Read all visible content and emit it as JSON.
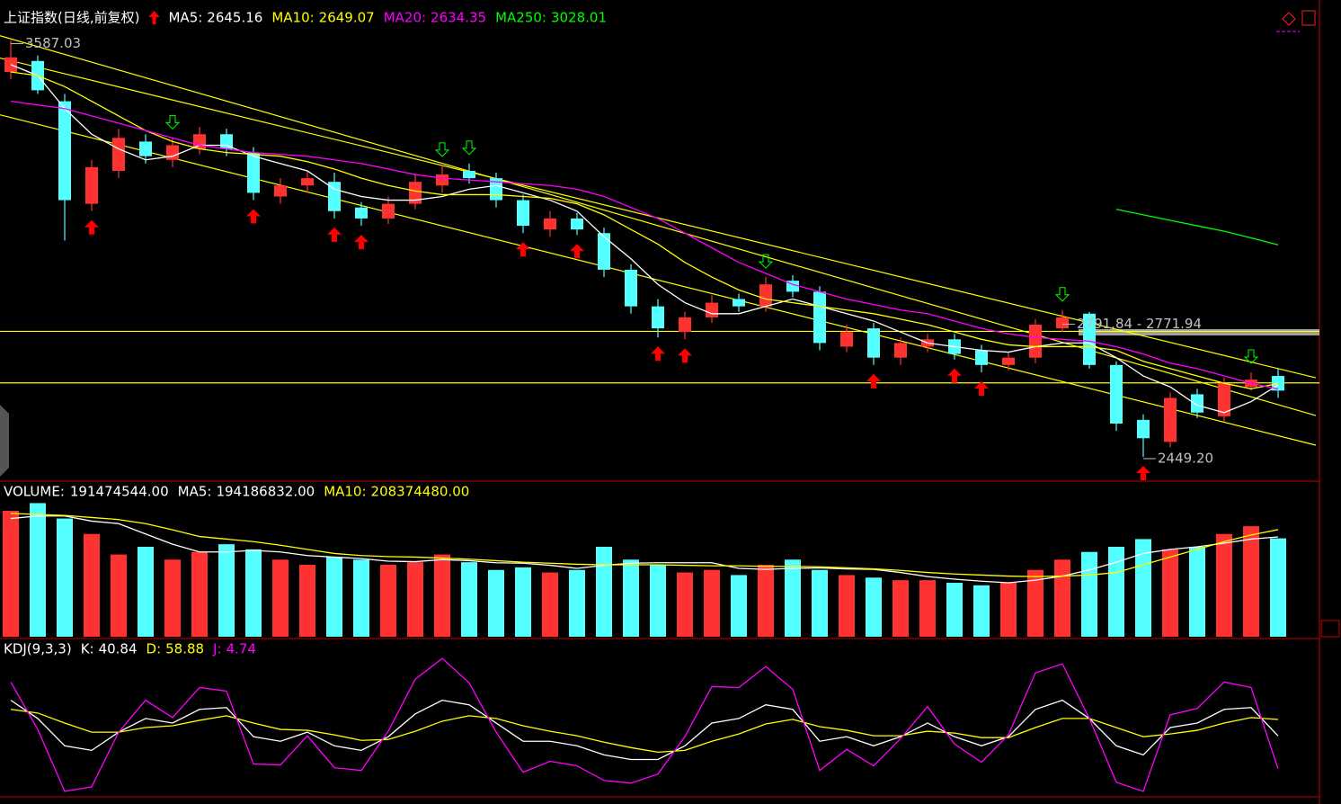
{
  "chart_data": [
    {
      "type": "candlestick",
      "title": "上证指数(日线,前复权)",
      "open": [
        3500,
        3530,
        3420,
        3140,
        3230,
        3310,
        3260,
        3290,
        3330,
        3280,
        3160,
        3190,
        3200,
        3130,
        3100,
        3140,
        3190,
        3230,
        3210,
        3150,
        3070,
        3100,
        3060,
        2960,
        2860,
        2790,
        2830,
        2880,
        2860,
        2930,
        2900,
        2750,
        2800,
        2720,
        2750,
        2770,
        2740,
        2700,
        2720,
        2800,
        2840,
        2700,
        2550,
        2490,
        2620,
        2560,
        2640,
        2670
      ],
      "high": [
        3587.03,
        3545,
        3440,
        3260,
        3345,
        3330,
        3320,
        3350,
        3345,
        3295,
        3210,
        3230,
        3225,
        3145,
        3160,
        3220,
        3245,
        3250,
        3225,
        3165,
        3120,
        3115,
        3075,
        2975,
        2880,
        2845,
        2890,
        2895,
        2940,
        2945,
        2915,
        2810,
        2815,
        2775,
        2785,
        2785,
        2755,
        2735,
        2825,
        2850,
        2845,
        2710,
        2565,
        2625,
        2635,
        2665,
        2680,
        2690
      ],
      "low": [
        3480,
        3440,
        3040,
        3120,
        3210,
        3250,
        3240,
        3275,
        3270,
        3150,
        3140,
        3170,
        3100,
        3080,
        3085,
        3125,
        3170,
        3195,
        3130,
        3060,
        3050,
        3055,
        2940,
        2840,
        2775,
        2770,
        2815,
        2845,
        2845,
        2885,
        2740,
        2735,
        2700,
        2700,
        2735,
        2715,
        2680,
        2685,
        2705,
        2790,
        2690,
        2520,
        2449.2,
        2475,
        2555,
        2545,
        2630,
        2610
      ],
      "close": [
        3540,
        3450,
        3150,
        3240,
        3320,
        3270,
        3300,
        3330,
        3290,
        3170,
        3190,
        3210,
        3120,
        3100,
        3140,
        3200,
        3220,
        3210,
        3150,
        3080,
        3100,
        3070,
        2960,
        2860,
        2800,
        2830,
        2870,
        2860,
        2920,
        2900,
        2760,
        2790,
        2720,
        2760,
        2770,
        2730,
        2700,
        2720,
        2810,
        2830,
        2700,
        2540,
        2500,
        2610,
        2570,
        2650,
        2660,
        2630
      ],
      "up_color": "#ff3232",
      "down_color": "#54ffff",
      "ylim": [
        2400,
        3640
      ],
      "series": [
        {
          "name": "MA5:",
          "color": "#ffffff",
          "values": [
            3520,
            3490,
            3400,
            3330,
            3290,
            3260,
            3270,
            3300,
            3300,
            3270,
            3250,
            3230,
            3180,
            3160,
            3150,
            3150,
            3160,
            3180,
            3190,
            3170,
            3150,
            3120,
            3050,
            2990,
            2920,
            2870,
            2840,
            2840,
            2860,
            2880,
            2860,
            2840,
            2820,
            2790,
            2760,
            2750,
            2740,
            2735,
            2750,
            2760,
            2760,
            2720,
            2670,
            2640,
            2590,
            2570,
            2600,
            2645.16
          ]
        },
        {
          "name": "MA10:",
          "color": "#ffff00",
          "values": [
            3500,
            3490,
            3460,
            3420,
            3380,
            3340,
            3310,
            3290,
            3280,
            3275,
            3270,
            3255,
            3235,
            3210,
            3190,
            3175,
            3165,
            3165,
            3165,
            3160,
            3155,
            3140,
            3110,
            3070,
            3030,
            2980,
            2940,
            2905,
            2880,
            2870,
            2860,
            2850,
            2840,
            2825,
            2810,
            2790,
            2770,
            2755,
            2750,
            2750,
            2750,
            2740,
            2710,
            2690,
            2670,
            2650,
            2635,
            2649.07
          ]
        },
        {
          "name": "MA20:",
          "color": "#ff00ff",
          "values": [
            3420,
            3410,
            3400,
            3380,
            3360,
            3340,
            3320,
            3300,
            3290,
            3280,
            3275,
            3270,
            3260,
            3250,
            3235,
            3220,
            3210,
            3205,
            3200,
            3195,
            3190,
            3180,
            3160,
            3130,
            3100,
            3060,
            3020,
            2980,
            2950,
            2920,
            2900,
            2880,
            2865,
            2850,
            2840,
            2820,
            2800,
            2785,
            2775,
            2770,
            2765,
            2750,
            2730,
            2705,
            2690,
            2670,
            2650,
            2634.35
          ]
        },
        {
          "name": "MA250:",
          "color": "#00ff00",
          "values": [
            null,
            null,
            null,
            null,
            null,
            null,
            null,
            null,
            null,
            null,
            null,
            null,
            null,
            null,
            null,
            null,
            null,
            null,
            null,
            null,
            null,
            null,
            null,
            null,
            null,
            null,
            null,
            null,
            null,
            null,
            null,
            null,
            null,
            null,
            null,
            null,
            null,
            null,
            null,
            null,
            null,
            3125,
            3110,
            3095,
            3080,
            3065,
            3047,
            3028.01
          ]
        }
      ],
      "hlines": [
        2791.84,
        2651
      ],
      "line_color": "#ffff00",
      "trendlines": [
        [
          -0.4,
          3599,
          48.4,
          2562
        ],
        [
          -0.4,
          3538,
          48.4,
          2665
        ],
        [
          -0.4,
          3383,
          48.4,
          2481
        ]
      ],
      "buy_signals": [
        3,
        9,
        12,
        13,
        19,
        21,
        24,
        25,
        32,
        35,
        36,
        42
      ],
      "sell_signals": [
        6,
        16,
        17,
        28,
        39,
        46
      ],
      "annotations": [
        {
          "text": "3587.03",
          "index": 0
        },
        {
          "text": "2449.20",
          "index": 42
        },
        {
          "text": "2791.84 - 2771.94",
          "index": 39
        }
      ]
    },
    {
      "type": "bar",
      "title": "VOLUME:",
      "values": [
        245000000,
        260000000,
        230000000,
        200000000,
        160000000,
        175000000,
        150000000,
        165000000,
        180000000,
        170000000,
        150000000,
        140000000,
        155000000,
        150000000,
        140000000,
        145000000,
        160000000,
        145000000,
        130000000,
        135000000,
        125000000,
        130000000,
        175000000,
        150000000,
        140000000,
        125000000,
        130000000,
        120000000,
        140000000,
        150000000,
        130000000,
        120000000,
        115000000,
        110000000,
        110000000,
        105000000,
        100000000,
        105000000,
        130000000,
        150000000,
        165000000,
        175000000,
        190000000,
        170000000,
        175000000,
        200000000,
        215000000,
        191474544
      ],
      "value_labels": [
        null,
        null,
        null,
        null,
        null,
        null,
        null,
        null,
        null,
        null,
        null,
        null,
        null,
        null,
        null,
        null,
        null,
        null,
        null,
        null,
        null,
        null,
        null,
        null,
        null,
        null,
        null,
        null,
        null,
        null,
        null,
        null,
        null,
        null,
        null,
        null,
        null,
        null,
        null,
        null,
        null,
        null,
        null,
        null,
        null,
        null,
        null,
        "191474544.00"
      ],
      "ylim": [
        0,
        280000000
      ],
      "series": [
        {
          "name": "MA5:",
          "color": "#ffffff",
          "values": [
            230000000,
            235000000,
            235000000,
            225000000,
            220000000,
            200000000,
            180000000,
            165000000,
            165000000,
            168000000,
            165000000,
            158000000,
            155000000,
            152000000,
            147000000,
            146000000,
            150000000,
            148000000,
            144000000,
            143000000,
            139000000,
            133000000,
            139000000,
            143000000,
            144000000,
            144000000,
            144000000,
            133000000,
            131000000,
            133000000,
            134000000,
            132000000,
            131000000,
            125000000,
            117000000,
            112000000,
            108000000,
            105000000,
            110000000,
            118000000,
            130000000,
            145000000,
            162000000,
            170000000,
            175000000,
            182000000,
            190000000,
            194186832
          ],
          "value_labels": [
            null,
            null,
            null,
            null,
            null,
            null,
            null,
            null,
            null,
            null,
            null,
            null,
            null,
            null,
            null,
            null,
            null,
            null,
            null,
            null,
            null,
            null,
            null,
            null,
            null,
            null,
            null,
            null,
            null,
            null,
            null,
            null,
            null,
            null,
            null,
            null,
            null,
            null,
            null,
            null,
            null,
            null,
            null,
            null,
            null,
            null,
            null,
            "194186832.00"
          ]
        },
        {
          "name": "MA10:",
          "color": "#ffff00",
          "values": [
            240000000,
            238000000,
            236000000,
            232000000,
            228000000,
            220000000,
            208000000,
            195000000,
            190000000,
            185000000,
            178000000,
            170000000,
            162000000,
            158000000,
            156000000,
            155000000,
            153000000,
            151000000,
            148000000,
            145000000,
            143000000,
            141000000,
            140000000,
            140000000,
            140000000,
            139000000,
            138000000,
            138000000,
            137000000,
            137000000,
            136000000,
            134000000,
            132000000,
            129000000,
            125000000,
            122000000,
            120000000,
            118000000,
            117000000,
            118000000,
            120000000,
            125000000,
            140000000,
            155000000,
            170000000,
            185000000,
            198000000,
            208374480
          ],
          "value_labels": [
            null,
            null,
            null,
            null,
            null,
            null,
            null,
            null,
            null,
            null,
            null,
            null,
            null,
            null,
            null,
            null,
            null,
            null,
            null,
            null,
            null,
            null,
            null,
            null,
            null,
            null,
            null,
            null,
            null,
            null,
            null,
            null,
            null,
            null,
            null,
            null,
            null,
            null,
            null,
            null,
            null,
            null,
            null,
            null,
            null,
            null,
            null,
            "208374480.00"
          ]
        }
      ]
    },
    {
      "type": "line",
      "title": "KDJ(9,3,3)",
      "ylim": [
        -25,
        130
      ],
      "series": [
        {
          "name": "K:",
          "color": "#ffffff",
          "values": [
            80,
            60,
            30,
            25,
            45,
            60,
            55,
            70,
            72,
            40,
            35,
            45,
            30,
            25,
            40,
            65,
            80,
            75,
            55,
            35,
            35,
            30,
            20,
            15,
            15,
            30,
            55,
            60,
            75,
            70,
            35,
            40,
            30,
            40,
            55,
            40,
            30,
            40,
            70,
            80,
            60,
            30,
            20,
            50,
            55,
            70,
            72,
            40.84
          ]
        },
        {
          "name": "D:",
          "color": "#ffff00",
          "values": [
            70,
            66,
            55,
            45,
            45,
            50,
            52,
            58,
            63,
            55,
            48,
            47,
            42,
            36,
            37,
            46,
            57,
            63,
            60,
            52,
            46,
            41,
            34,
            28,
            23,
            25,
            35,
            43,
            54,
            59,
            51,
            47,
            41,
            41,
            46,
            44,
            39,
            39,
            50,
            60,
            60,
            50,
            40,
            43,
            47,
            55,
            61,
            58.88
          ]
        },
        {
          "name": "J:",
          "color": "#ff00ff",
          "values": [
            100,
            48,
            -20,
            -15,
            45,
            80,
            61,
            94,
            90,
            10,
            9,
            41,
            6,
            3,
            46,
            103,
            126,
            99,
            45,
            1,
            13,
            8,
            -8,
            -11,
            -1,
            40,
            95,
            94,
            117,
            92,
            3,
            26,
            8,
            38,
            73,
            32,
            12,
            42,
            110,
            120,
            60,
            -10,
            -20,
            64,
            71,
            100,
            94,
            4.74
          ]
        }
      ]
    }
  ]
}
